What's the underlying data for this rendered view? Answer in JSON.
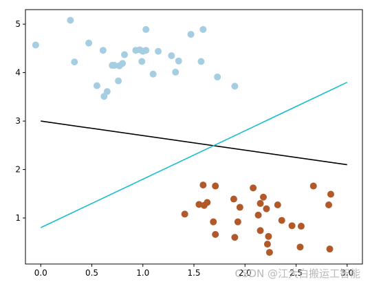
{
  "chart_data": {
    "type": "scatter",
    "xlim": [
      -0.15,
      3.15
    ],
    "ylim": [
      0.05,
      5.3
    ],
    "x_ticks": [
      "0.0",
      "0.5",
      "1.0",
      "1.5",
      "2.0",
      "2.5",
      "3.0"
    ],
    "y_ticks": [
      "1",
      "2",
      "3",
      "4",
      "5"
    ],
    "grid": false,
    "series": [
      {
        "kind": "points",
        "color": "#a6cee3",
        "points": [
          [
            -0.05,
            4.57
          ],
          [
            0.29,
            5.08
          ],
          [
            0.33,
            4.22
          ],
          [
            0.47,
            4.61
          ],
          [
            0.55,
            3.73
          ],
          [
            0.61,
            4.46
          ],
          [
            0.62,
            3.51
          ],
          [
            0.65,
            3.61
          ],
          [
            0.7,
            4.15
          ],
          [
            0.72,
            4.15
          ],
          [
            0.76,
            3.83
          ],
          [
            0.77,
            4.14
          ],
          [
            0.8,
            4.19
          ],
          [
            0.82,
            4.37
          ],
          [
            0.93,
            4.46
          ],
          [
            0.97,
            4.47
          ],
          [
            0.99,
            4.23
          ],
          [
            1.0,
            4.44
          ],
          [
            1.03,
            4.46
          ],
          [
            1.03,
            4.89
          ],
          [
            1.1,
            3.97
          ],
          [
            1.15,
            4.44
          ],
          [
            1.28,
            4.35
          ],
          [
            1.32,
            4.01
          ],
          [
            1.35,
            4.24
          ],
          [
            1.47,
            4.79
          ],
          [
            1.57,
            4.23
          ],
          [
            1.59,
            4.89
          ],
          [
            1.73,
            3.91
          ],
          [
            1.9,
            3.72
          ]
        ]
      },
      {
        "kind": "points",
        "color": "#b15928",
        "points": [
          [
            1.41,
            1.08
          ],
          [
            1.55,
            1.28
          ],
          [
            1.59,
            1.68
          ],
          [
            1.6,
            1.26
          ],
          [
            1.63,
            1.32
          ],
          [
            1.69,
            0.92
          ],
          [
            1.71,
            1.66
          ],
          [
            1.71,
            0.66
          ],
          [
            1.89,
            1.39
          ],
          [
            1.9,
            0.6
          ],
          [
            1.93,
            0.92
          ],
          [
            1.95,
            1.22
          ],
          [
            2.08,
            1.62
          ],
          [
            2.13,
            1.06
          ],
          [
            2.15,
            1.3
          ],
          [
            2.15,
            0.74
          ],
          [
            2.18,
            1.43
          ],
          [
            2.21,
            1.19
          ],
          [
            2.22,
            0.46
          ],
          [
            2.23,
            0.62
          ],
          [
            2.24,
            0.29
          ],
          [
            2.32,
            1.27
          ],
          [
            2.36,
            0.95
          ],
          [
            2.46,
            0.84
          ],
          [
            2.54,
            0.4
          ],
          [
            2.55,
            0.83
          ],
          [
            2.67,
            1.66
          ],
          [
            2.82,
            1.27
          ],
          [
            2.83,
            0.36
          ],
          [
            2.84,
            1.49
          ]
        ]
      },
      {
        "kind": "line",
        "color": "#000000",
        "points": [
          [
            0.0,
            3.0
          ],
          [
            3.0,
            2.1
          ]
        ]
      },
      {
        "kind": "line",
        "color": "#17becf",
        "points": [
          [
            0.0,
            0.8
          ],
          [
            3.0,
            3.8
          ]
        ]
      }
    ]
  },
  "watermark": "CSDN @江大白搬运工智能"
}
